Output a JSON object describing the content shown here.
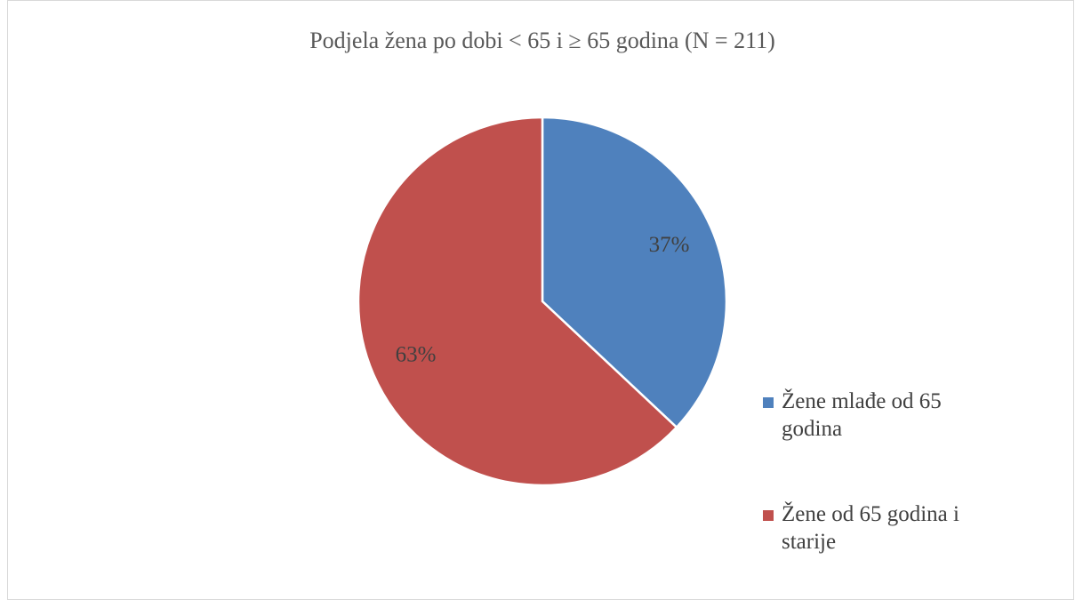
{
  "chart_data": {
    "type": "pie",
    "title": "Podjela žena po dobi < 65 i ≥ 65 godina (N = 211)",
    "categories": [
      "Žene mlađe od 65 godina",
      "Žene od 65 godina i starije"
    ],
    "values": [
      37,
      63
    ],
    "value_labels": [
      "37%",
      "63%"
    ],
    "colors": [
      "#4f81bd",
      "#c0504d"
    ]
  }
}
